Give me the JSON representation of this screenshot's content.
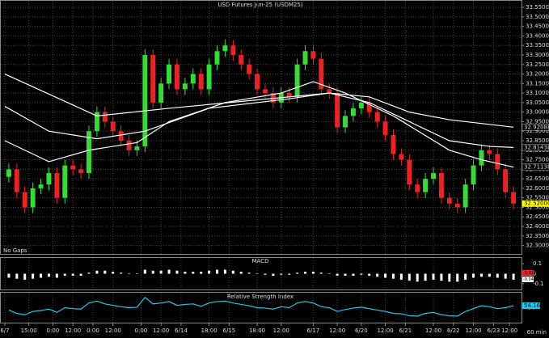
{
  "chart_data": {
    "type": "candlestick",
    "title": "USD  Futures  Jun-25  (USDM25)",
    "note": "No Gaps",
    "interval": "60 min",
    "up_color": "#33dd33",
    "down_color": "#ee2222",
    "grid": true,
    "xlim": [
      -1,
      64
    ],
    "ylim": [
      32.26,
      33.58
    ],
    "yticks": [
      {
        "value": 32.3,
        "label": "32.3000"
      },
      {
        "value": 32.35,
        "label": "32.3500"
      },
      {
        "value": 32.4,
        "label": "32.4000"
      },
      {
        "value": 32.45,
        "label": "32.4500"
      },
      {
        "value": 32.5,
        "label": "32.5000"
      },
      {
        "value": 32.55,
        "label": "32.5500"
      },
      {
        "value": 32.6,
        "label": "32.6000"
      },
      {
        "value": 32.65,
        "label": "32.6500"
      },
      {
        "value": 32.7,
        "label": "32.7000"
      },
      {
        "value": 32.75,
        "label": "32.7500"
      },
      {
        "value": 32.8,
        "label": "32.8000"
      },
      {
        "value": 32.85,
        "label": "32.8500"
      },
      {
        "value": 32.9,
        "label": "32.9000"
      },
      {
        "value": 32.95,
        "label": "32.9500"
      },
      {
        "value": 33.0,
        "label": "33.0000"
      },
      {
        "value": 33.05,
        "label": "33.0500"
      },
      {
        "value": 33.1,
        "label": "33.1000"
      },
      {
        "value": 33.15,
        "label": "33.1500"
      },
      {
        "value": 33.2,
        "label": "33.2000"
      },
      {
        "value": 33.25,
        "label": "33.2500"
      },
      {
        "value": 33.3,
        "label": "33.3000"
      },
      {
        "value": 33.35,
        "label": "33.3500"
      },
      {
        "value": 33.4,
        "label": "33.4000"
      },
      {
        "value": 33.45,
        "label": "33.4500"
      },
      {
        "value": 33.5,
        "label": "33.5000"
      },
      {
        "value": 33.55,
        "label": "33.5500"
      }
    ],
    "xticks": [
      {
        "value": -0.5,
        "label": "6/7"
      },
      {
        "value": 2.5,
        "label": "15:00"
      },
      {
        "value": 5.5,
        "label": "0:00"
      },
      {
        "value": 8,
        "label": "12:00"
      },
      {
        "value": 10.5,
        "label": "0:00"
      },
      {
        "value": 13,
        "label": "12:00"
      },
      {
        "value": 16.5,
        "label": "0:00"
      },
      {
        "value": 19,
        "label": "12:00"
      },
      {
        "value": 21.5,
        "label": "6/14"
      },
      {
        "value": 25,
        "label": "18:00"
      },
      {
        "value": 27.5,
        "label": "6/15"
      },
      {
        "value": 31,
        "label": "18:00"
      },
      {
        "value": 34,
        "label": "12:00"
      },
      {
        "value": 38,
        "label": "6/17"
      },
      {
        "value": 41,
        "label": "12:00"
      },
      {
        "value": 44,
        "label": "6/20"
      },
      {
        "value": 47,
        "label": "12:00"
      },
      {
        "value": 49.5,
        "label": "6/21"
      },
      {
        "value": 53,
        "label": "12:00"
      },
      {
        "value": 55.5,
        "label": "6/22"
      },
      {
        "value": 58,
        "label": "12:00"
      },
      {
        "value": 60.5,
        "label": "6/23"
      },
      {
        "value": 62.5,
        "label": "12:00"
      }
    ],
    "ohlc": [
      [
        32.66,
        32.73,
        32.63,
        32.7
      ],
      [
        32.7,
        32.73,
        32.55,
        32.58
      ],
      [
        32.58,
        32.61,
        32.47,
        32.5
      ],
      [
        32.5,
        32.63,
        32.47,
        32.6
      ],
      [
        32.6,
        32.65,
        32.57,
        32.62
      ],
      [
        32.62,
        32.71,
        32.59,
        32.68
      ],
      [
        32.68,
        32.71,
        32.52,
        32.55
      ],
      [
        32.55,
        32.75,
        32.52,
        32.72
      ],
      [
        32.72,
        32.75,
        32.67,
        32.7
      ],
      [
        32.7,
        32.73,
        32.65,
        32.68
      ],
      [
        32.68,
        32.93,
        32.65,
        32.9
      ],
      [
        32.9,
        33.03,
        32.87,
        33.0
      ],
      [
        33.0,
        33.03,
        32.92,
        32.95
      ],
      [
        32.95,
        32.98,
        32.87,
        32.9
      ],
      [
        32.9,
        32.93,
        32.82,
        32.85
      ],
      [
        32.85,
        32.88,
        32.77,
        32.8
      ],
      [
        32.8,
        32.85,
        32.77,
        32.82
      ],
      [
        32.82,
        33.33,
        32.79,
        33.3
      ],
      [
        33.3,
        33.33,
        33.02,
        33.05
      ],
      [
        33.05,
        33.18,
        33.02,
        33.15
      ],
      [
        33.15,
        33.28,
        33.12,
        33.25
      ],
      [
        33.25,
        33.28,
        33.09,
        33.12
      ],
      [
        33.12,
        33.18,
        33.09,
        33.15
      ],
      [
        33.15,
        33.23,
        33.12,
        33.2
      ],
      [
        33.2,
        33.23,
        33.09,
        33.12
      ],
      [
        33.12,
        33.28,
        33.09,
        33.25
      ],
      [
        33.25,
        33.35,
        33.22,
        33.32
      ],
      [
        33.32,
        33.38,
        33.29,
        33.35
      ],
      [
        33.35,
        33.38,
        33.27,
        33.3
      ],
      [
        33.3,
        33.33,
        33.22,
        33.25
      ],
      [
        33.25,
        33.28,
        33.17,
        33.2
      ],
      [
        33.2,
        33.23,
        33.09,
        33.12
      ],
      [
        33.12,
        33.15,
        33.07,
        33.1
      ],
      [
        33.1,
        33.13,
        33.02,
        33.05
      ],
      [
        33.05,
        33.13,
        33.02,
        33.1
      ],
      [
        33.1,
        33.13,
        33.05,
        33.08
      ],
      [
        33.08,
        33.28,
        33.05,
        33.25
      ],
      [
        33.25,
        33.35,
        33.22,
        33.32
      ],
      [
        33.32,
        33.35,
        33.25,
        33.28
      ],
      [
        33.28,
        33.31,
        33.09,
        33.12
      ],
      [
        33.12,
        33.15,
        33.07,
        33.1
      ],
      [
        33.1,
        33.13,
        32.89,
        32.92
      ],
      [
        32.92,
        33.01,
        32.89,
        32.98
      ],
      [
        32.98,
        33.05,
        32.95,
        33.02
      ],
      [
        33.02,
        33.08,
        32.99,
        33.05
      ],
      [
        33.05,
        33.08,
        32.97,
        33.0
      ],
      [
        33.0,
        33.03,
        32.92,
        32.95
      ],
      [
        32.95,
        32.98,
        32.85,
        32.88
      ],
      [
        32.88,
        32.91,
        32.75,
        32.78
      ],
      [
        32.78,
        32.81,
        32.72,
        32.75
      ],
      [
        32.75,
        32.78,
        32.59,
        32.62
      ],
      [
        32.62,
        32.65,
        32.55,
        32.58
      ],
      [
        32.58,
        32.68,
        32.55,
        32.65
      ],
      [
        32.65,
        32.71,
        32.62,
        32.68
      ],
      [
        32.68,
        32.71,
        32.52,
        32.55
      ],
      [
        32.55,
        32.58,
        32.49,
        32.52
      ],
      [
        32.52,
        32.55,
        32.47,
        32.5
      ],
      [
        32.5,
        32.65,
        32.47,
        32.62
      ],
      [
        32.62,
        32.75,
        32.59,
        32.72
      ],
      [
        32.72,
        32.83,
        32.69,
        32.8
      ],
      [
        32.8,
        32.83,
        32.75,
        32.78
      ],
      [
        32.78,
        32.81,
        32.67,
        32.7
      ],
      [
        32.7,
        32.73,
        32.55,
        32.58
      ],
      [
        32.58,
        32.61,
        32.49,
        32.52
      ]
    ],
    "last_label": "32.52000",
    "averages": [
      {
        "color": "#ffffff",
        "x": [
          -0.5,
          11,
          20,
          30,
          40,
          45,
          50,
          55,
          63
        ],
        "values": [
          33.2,
          32.98,
          33.02,
          33.06,
          33.1,
          33.08,
          33.0,
          32.96,
          32.92088
        ],
        "last_label": "32.92088"
      },
      {
        "color": "#ffffff",
        "x": [
          -0.5,
          5,
          11,
          17,
          25,
          35,
          40,
          45,
          50,
          55,
          60,
          63
        ],
        "values": [
          33.03,
          32.9,
          32.86,
          32.9,
          33.02,
          33.07,
          33.1,
          33.05,
          32.95,
          32.85,
          32.82,
          32.81438
        ],
        "last_label": "32.81438"
      },
      {
        "color": "#ffffff",
        "x": [
          -0.5,
          5,
          10,
          16,
          20,
          27,
          34,
          38,
          42,
          48,
          55,
          59,
          63
        ],
        "values": [
          32.85,
          32.74,
          32.8,
          32.84,
          32.95,
          33.05,
          33.1,
          33.16,
          33.1,
          32.98,
          32.8,
          32.75,
          32.71138
        ],
        "last_label": "32.71138"
      }
    ],
    "macd": {
      "title": "MACD",
      "color": "#ffffff",
      "ylim": [
        -0.15,
        0.15
      ],
      "yticks": [
        0.1,
        0,
        -0.1
      ],
      "marker_labels": [
        "-0.01838",
        "-0.04816"
      ],
      "values": [
        -0.04,
        -0.05,
        -0.06,
        -0.05,
        -0.04,
        -0.03,
        -0.04,
        -0.02,
        -0.02,
        -0.02,
        0.01,
        0.03,
        0.03,
        0.02,
        0.01,
        0,
        0,
        0.04,
        0.03,
        0.03,
        0.04,
        0.03,
        0.02,
        0.02,
        0.02,
        0.03,
        0.04,
        0.04,
        0.03,
        0.02,
        0.01,
        0,
        -0.01,
        -0.02,
        -0.01,
        -0.01,
        0.01,
        0.02,
        0.02,
        0.01,
        0,
        -0.02,
        -0.02,
        -0.02,
        -0.01,
        -0.02,
        -0.03,
        -0.04,
        -0.05,
        -0.06,
        -0.07,
        -0.08,
        -0.07,
        -0.06,
        -0.07,
        -0.08,
        -0.08,
        -0.06,
        -0.04,
        -0.03,
        -0.03,
        -0.04,
        -0.05,
        -0.06
      ]
    },
    "rsi": {
      "title": "Relative Strength Index",
      "color": "#22c8e8",
      "ylim": [
        20,
        80
      ],
      "yticks": [
        50
      ],
      "last_label": "54.16",
      "values": [
        45,
        38,
        35,
        42,
        44,
        47,
        40,
        50,
        48,
        47,
        60,
        64,
        58,
        55,
        52,
        50,
        51,
        72,
        58,
        60,
        63,
        55,
        57,
        58,
        53,
        60,
        63,
        64,
        60,
        57,
        54,
        50,
        49,
        47,
        52,
        50,
        60,
        63,
        60,
        52,
        50,
        42,
        46,
        49,
        51,
        48,
        45,
        42,
        38,
        37,
        33,
        32,
        38,
        40,
        35,
        33,
        32,
        42,
        48,
        54,
        52,
        48,
        50,
        54.16
      ]
    }
  }
}
